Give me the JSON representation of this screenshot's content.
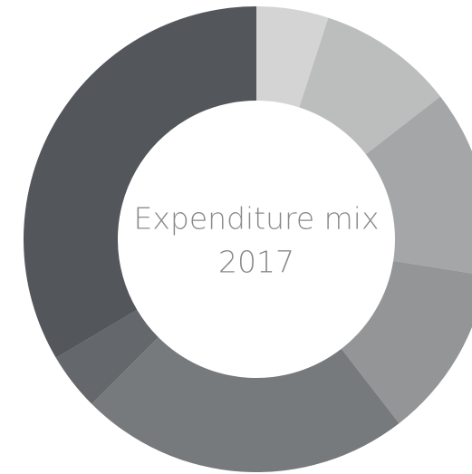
{
  "chart_data": {
    "type": "donut",
    "title": "Expenditure mix",
    "subtitle": "2017",
    "values": [
      5,
      9.5,
      13,
      12,
      23,
      4,
      33.5
    ],
    "colors": [
      "#d4d4d4",
      "#bcbdbd",
      "#a5a6a7",
      "#939596",
      "#767a7d",
      "#64686c",
      "#53575b"
    ]
  }
}
